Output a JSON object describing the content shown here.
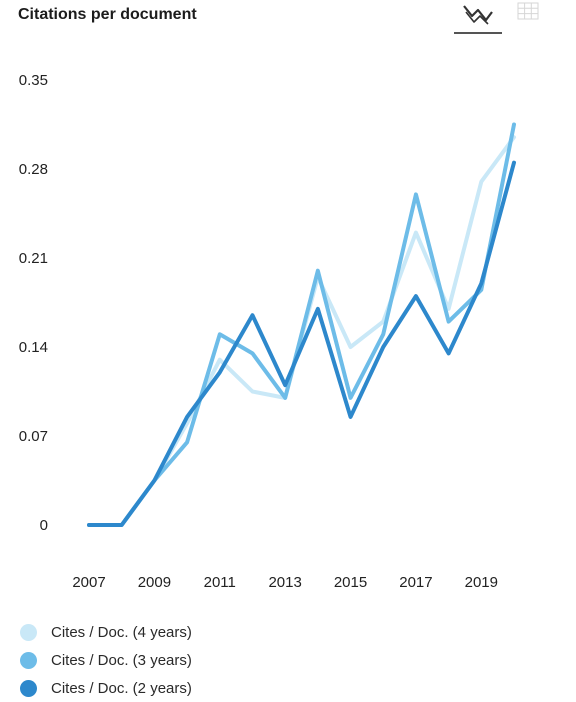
{
  "header": {
    "title": "Citations per document",
    "line_icon": "line-chart-icon",
    "table_icon": "table-grid-icon"
  },
  "colors": {
    "series_4y": "#c9e8f7",
    "series_3y": "#6dbce8",
    "series_2y": "#2d88cc",
    "toggle_active": "#333333",
    "toggle_inactive": "#d6d6d6"
  },
  "chart_data": {
    "type": "line",
    "title": "Citations per document",
    "xlabel": "",
    "ylabel": "",
    "x": [
      2007,
      2008,
      2009,
      2010,
      2011,
      2012,
      2013,
      2014,
      2015,
      2016,
      2017,
      2018,
      2019,
      2020
    ],
    "x_ticks": [
      "2007",
      "2009",
      "2011",
      "2013",
      "2015",
      "2017",
      "2019"
    ],
    "y_ticks": [
      "0",
      "0.07",
      "0.14",
      "0.21",
      "0.28",
      "0.35"
    ],
    "ylim": [
      0,
      0.35
    ],
    "grid": false,
    "legend_position": "bottom-left",
    "series": [
      {
        "name": "Cites / Doc. (4 years)",
        "color": "#c9e8f7",
        "values": [
          0,
          0,
          0.035,
          0.08,
          0.13,
          0.105,
          0.1,
          0.195,
          0.14,
          0.16,
          0.23,
          0.17,
          0.27,
          0.305
        ]
      },
      {
        "name": "Cites / Doc. (3 years)",
        "color": "#6dbce8",
        "values": [
          0,
          0,
          0.035,
          0.065,
          0.15,
          0.135,
          0.1,
          0.2,
          0.1,
          0.15,
          0.26,
          0.16,
          0.185,
          0.315
        ]
      },
      {
        "name": "Cites / Doc. (2 years)",
        "color": "#2d88cc",
        "values": [
          0,
          0,
          0.035,
          0.085,
          0.12,
          0.165,
          0.11,
          0.17,
          0.085,
          0.14,
          0.18,
          0.135,
          0.19,
          0.285
        ]
      }
    ]
  }
}
